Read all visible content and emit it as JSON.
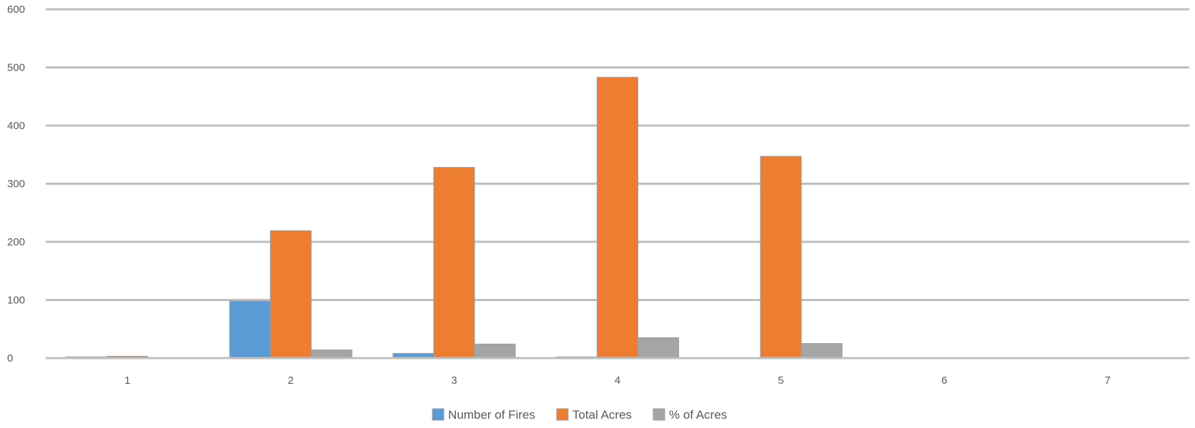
{
  "chart_data": {
    "type": "bar",
    "categories": [
      "1",
      "2",
      "3",
      "4",
      "5",
      "6",
      "7"
    ],
    "series": [
      {
        "name": "Number of Fires",
        "color": "#5B9BD5",
        "values": [
          2,
          98,
          8,
          2,
          1,
          0,
          0
        ]
      },
      {
        "name": "Total Acres",
        "color": "#ED7D31",
        "values": [
          3,
          219,
          328,
          483,
          347,
          0,
          0
        ]
      },
      {
        "name": "% of Acres",
        "color": "#A5A5A5",
        "values": [
          0,
          14,
          24,
          35,
          25,
          0,
          0
        ]
      }
    ],
    "y_ticks": [
      "0",
      "100",
      "200",
      "300",
      "400",
      "500",
      "600"
    ],
    "ylim": [
      0,
      600
    ],
    "grid": true,
    "legend_position": "bottom",
    "title": "",
    "xlabel": "",
    "ylabel": ""
  }
}
